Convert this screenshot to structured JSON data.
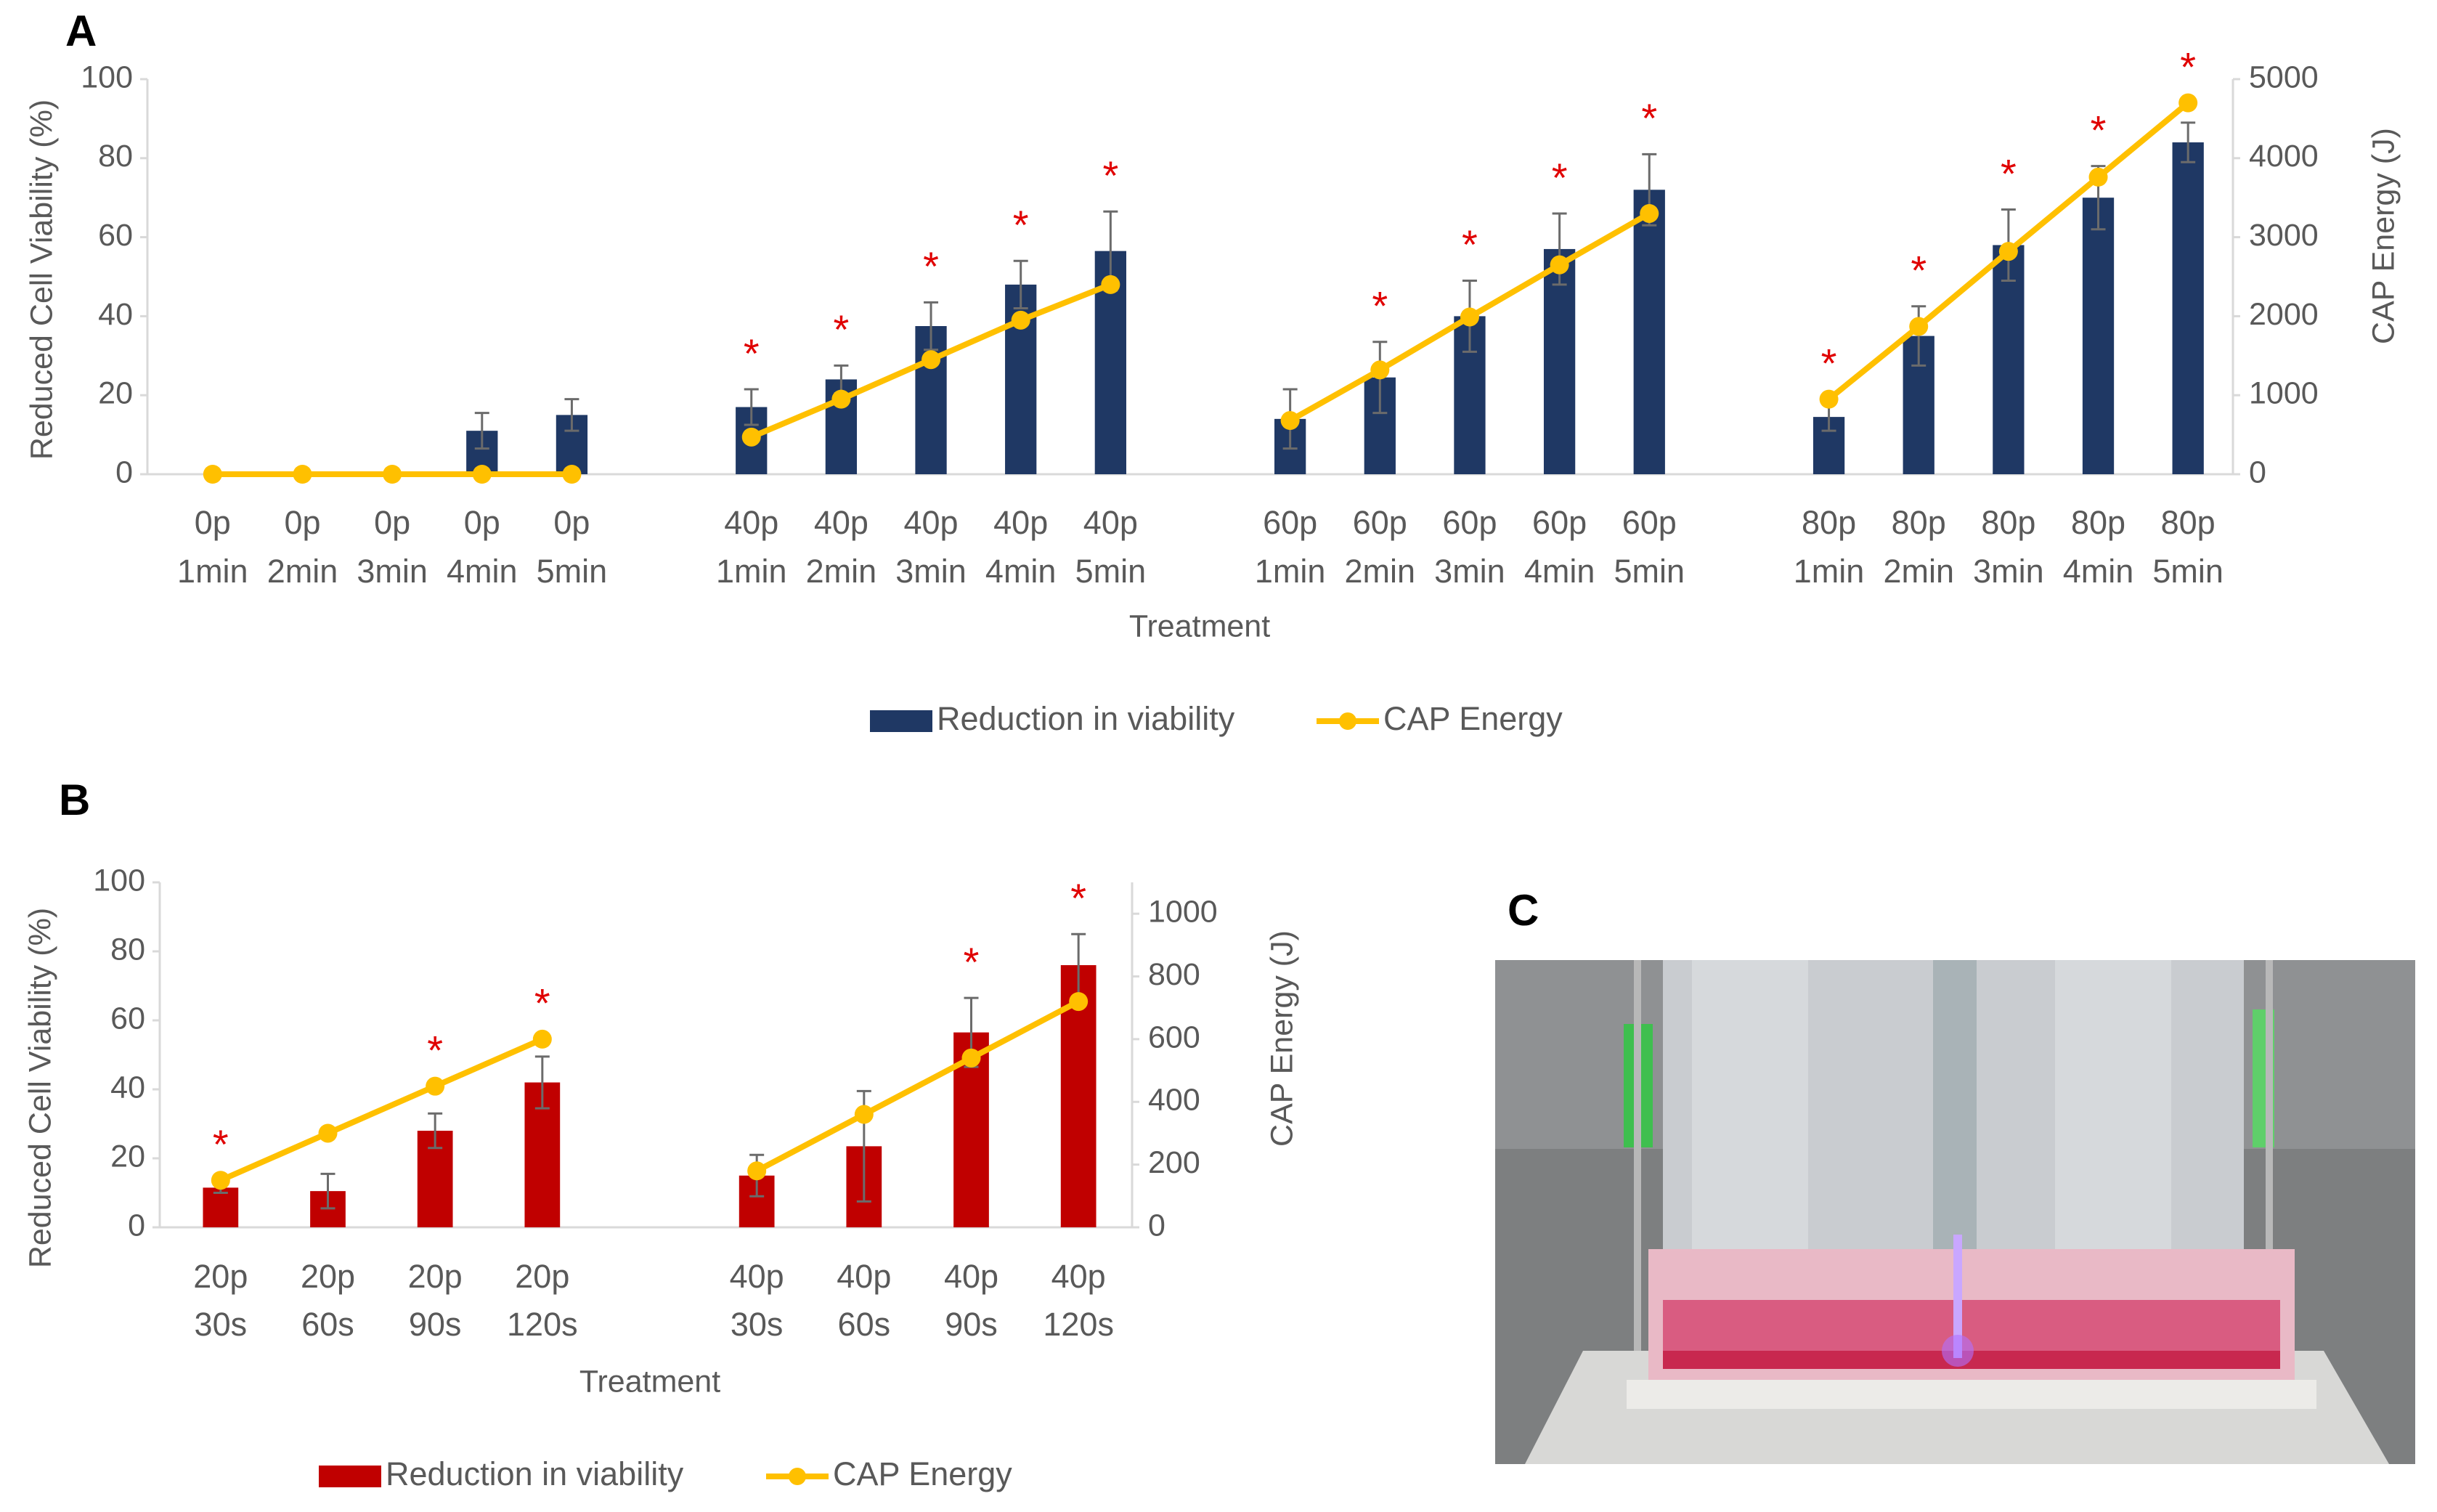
{
  "chart_data": [
    {
      "type": "bar_line",
      "panel": "A",
      "categories": [
        [
          "0p",
          "1min"
        ],
        [
          "0p",
          "2min"
        ],
        [
          "0p",
          "3min"
        ],
        [
          "0p",
          "4min"
        ],
        [
          "0p",
          "5min"
        ],
        null,
        [
          "40p",
          "1min"
        ],
        [
          "40p",
          "2min"
        ],
        [
          "40p",
          "3min"
        ],
        [
          "40p",
          "4min"
        ],
        [
          "40p",
          "5min"
        ],
        null,
        [
          "60p",
          "1min"
        ],
        [
          "60p",
          "2min"
        ],
        [
          "60p",
          "3min"
        ],
        [
          "60p",
          "4min"
        ],
        [
          "60p",
          "5min"
        ],
        null,
        [
          "80p",
          "1min"
        ],
        [
          "80p",
          "2min"
        ],
        [
          "80p",
          "3min"
        ],
        [
          "80p",
          "4min"
        ],
        [
          "80p",
          "5min"
        ]
      ],
      "series": [
        {
          "name": "Reduction in viability",
          "type": "bar",
          "color": "#1f3864",
          "values": [
            0,
            0,
            0,
            11,
            15,
            null,
            17,
            24,
            37.5,
            48,
            56.5,
            null,
            14,
            24.5,
            40,
            57,
            72,
            null,
            14.5,
            35,
            58,
            70,
            84
          ],
          "errors": [
            0,
            0,
            0,
            4.5,
            4,
            null,
            4.5,
            3.5,
            6,
            6,
            10,
            null,
            7.5,
            9,
            9,
            9,
            9,
            null,
            3.5,
            7.5,
            9,
            8,
            5
          ]
        },
        {
          "name": "CAP Energy",
          "type": "line",
          "axis": "y2",
          "color": "#ffc000",
          "values": [
            0,
            0,
            0,
            0,
            0,
            null,
            470,
            950,
            1450,
            1950,
            2400,
            null,
            680,
            1320,
            1990,
            2650,
            3300,
            null,
            950,
            1870,
            2820,
            3760,
            4700
          ]
        }
      ],
      "annotations": [
        null,
        null,
        null,
        null,
        null,
        null,
        "*",
        "*",
        "*",
        "*",
        "*",
        null,
        null,
        "*",
        "*",
        "*",
        "*",
        null,
        "*",
        "*",
        "*",
        "*",
        "*"
      ],
      "annotation_color": "#e00000",
      "y_label": "Reduced Cell Viability (%)",
      "y2_label": "CAP Energy (J)",
      "x_label": "Treatment",
      "ylim": [
        0,
        100
      ],
      "yticks": [
        0,
        20,
        40,
        60,
        80,
        100
      ],
      "y2lim": [
        0,
        5000
      ],
      "y2ticks": [
        0,
        1000,
        2000,
        3000,
        4000,
        5000
      ],
      "grid": false,
      "legend": "bottom"
    },
    {
      "type": "bar_line",
      "panel": "B",
      "categories": [
        [
          "20p",
          "30s"
        ],
        [
          "20p",
          "60s"
        ],
        [
          "20p",
          "90s"
        ],
        [
          "20p",
          "120s"
        ],
        null,
        [
          "40p",
          "30s"
        ],
        [
          "40p",
          "60s"
        ],
        [
          "40p",
          "90s"
        ],
        [
          "40p",
          "120s"
        ]
      ],
      "series": [
        {
          "name": "Reduction in viability",
          "type": "bar",
          "color": "#c00000",
          "values": [
            11.5,
            10.5,
            28,
            42,
            null,
            15,
            23.5,
            56.5,
            76
          ],
          "errors": [
            1.5,
            5,
            5,
            7.5,
            null,
            6,
            16,
            10,
            9
          ]
        },
        {
          "name": "CAP Energy",
          "type": "line",
          "axis": "y2",
          "color": "#ffc000",
          "values": [
            150,
            300,
            450,
            600,
            null,
            180,
            360,
            540,
            720
          ]
        }
      ],
      "annotations": [
        "*",
        null,
        "*",
        "*",
        null,
        null,
        null,
        "*",
        "*"
      ],
      "annotation_color": "#e00000",
      "y_label": "Reduced Cell Viability (%)",
      "y2_label": "CAP Energy (J)",
      "x_label": "Treatment",
      "ylim": [
        0,
        100
      ],
      "yticks": [
        0,
        20,
        40,
        60,
        80,
        100
      ],
      "y2lim": [
        0,
        1100
      ],
      "y2ticks": [
        0,
        200,
        400,
        600,
        800,
        1000
      ],
      "grid": false,
      "legend": "bottom"
    }
  ],
  "photo": {
    "panel": "C"
  }
}
